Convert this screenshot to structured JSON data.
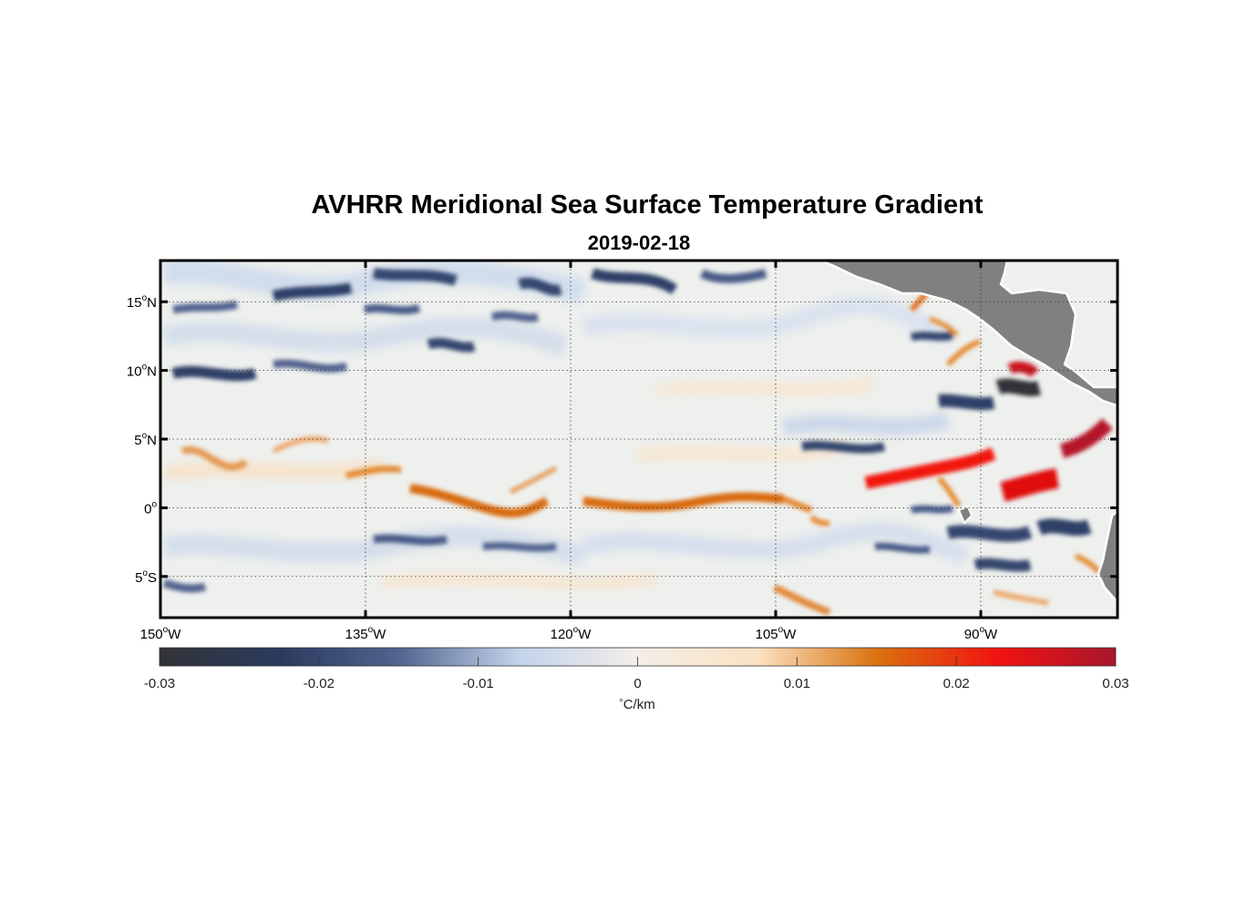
{
  "title": "AVHRR Meridional Sea Surface Temperature Gradient",
  "subtitle": "2019-02-18",
  "map": {
    "lon_range": [
      -150,
      -80
    ],
    "lat_range": [
      -8,
      18
    ],
    "grid": true,
    "lon_ticks": [
      {
        "value": -150,
        "deg": "150",
        "hemi": "W"
      },
      {
        "value": -135,
        "deg": "135",
        "hemi": "W"
      },
      {
        "value": -120,
        "deg": "120",
        "hemi": "W"
      },
      {
        "value": -105,
        "deg": "105",
        "hemi": "W"
      },
      {
        "value": -90,
        "deg": "90",
        "hemi": "W"
      }
    ],
    "lat_ticks": [
      {
        "value": 15,
        "deg": "15",
        "hemi": "N"
      },
      {
        "value": 10,
        "deg": "10",
        "hemi": "N"
      },
      {
        "value": 5,
        "deg": "5",
        "hemi": "N"
      },
      {
        "value": 0,
        "deg": "0",
        "hemi": ""
      },
      {
        "value": -5,
        "deg": "5",
        "hemi": "S"
      }
    ],
    "land_color": "#808080"
  },
  "colorbar": {
    "range": [
      -0.03,
      0.03
    ],
    "ticks": [
      {
        "value": -0.03,
        "label": "-0.03"
      },
      {
        "value": -0.02,
        "label": "-0.02"
      },
      {
        "value": -0.01,
        "label": "-0.01"
      },
      {
        "value": 0,
        "label": "0"
      },
      {
        "value": 0.01,
        "label": "0.01"
      },
      {
        "value": 0.02,
        "label": "0.02"
      },
      {
        "value": 0.03,
        "label": "0.03"
      }
    ],
    "unit_degree": "°",
    "unit_text": "C/km",
    "colors": [
      "#333338",
      "#2a3a5e",
      "#52648f",
      "#c2d3ea",
      "#f3eee8",
      "#fbe2c2",
      "#d9720f",
      "#f21410",
      "#a8162c"
    ]
  }
}
